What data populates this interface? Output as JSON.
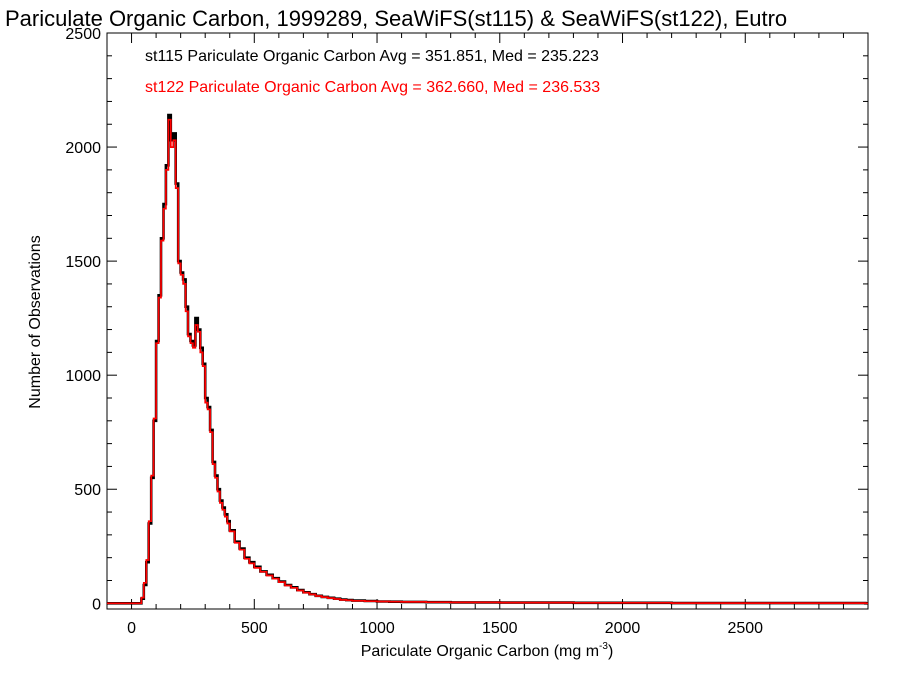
{
  "chart_data": {
    "type": "line",
    "step": true,
    "title": "Pariculate Organic Carbon, 1999289, SeaWiFS(st115) & SeaWiFS(st122), Eutro",
    "xlabel": "Pariculate Organic Carbon (mg m",
    "xlabel_sup": "-3",
    "xlabel_close": ")",
    "ylabel": "Number of Observations",
    "xlim": [
      -100,
      3000
    ],
    "ylim": [
      -25,
      2500
    ],
    "xticks": [
      0,
      500,
      1000,
      1500,
      2000,
      2500
    ],
    "yticks": [
      0,
      500,
      1000,
      1500,
      2000,
      2500
    ],
    "grid": false,
    "legend_position": "top-left",
    "bin_width": 10,
    "series": [
      {
        "name": "st115 Pariculate Organic Carbon Avg = 351.851, Med = 235.223",
        "color": "#000000",
        "x": [
          40,
          50,
          60,
          70,
          80,
          90,
          100,
          110,
          120,
          130,
          140,
          150,
          160,
          170,
          180,
          190,
          200,
          210,
          220,
          230,
          240,
          250,
          260,
          270,
          280,
          290,
          300,
          310,
          320,
          330,
          340,
          350,
          360,
          370,
          380,
          390,
          400,
          420,
          440,
          460,
          480,
          500,
          525,
          550,
          575,
          600,
          625,
          650,
          675,
          700,
          725,
          750,
          775,
          800,
          825,
          850,
          875,
          900,
          950,
          1000,
          1050,
          1100,
          1200,
          1300,
          1400,
          1500,
          1600,
          1800,
          2000,
          2200,
          2500,
          2800,
          2990
        ],
        "values": [
          20,
          80,
          180,
          350,
          550,
          800,
          1150,
          1350,
          1600,
          1750,
          1920,
          2140,
          2030,
          2060,
          1840,
          1500,
          1450,
          1420,
          1300,
          1180,
          1150,
          1130,
          1250,
          1200,
          1120,
          1050,
          900,
          860,
          760,
          620,
          560,
          500,
          450,
          420,
          390,
          360,
          320,
          270,
          240,
          200,
          180,
          160,
          140,
          125,
          110,
          95,
          80,
          70,
          58,
          48,
          40,
          33,
          28,
          24,
          20,
          16,
          14,
          12,
          10,
          8,
          7,
          6,
          5,
          4,
          4,
          3,
          3,
          2,
          2,
          1,
          1,
          1,
          0
        ]
      },
      {
        "name": "st122 Pariculate Organic Carbon Avg = 362.660, Med = 236.533",
        "color": "#ff0000",
        "x": [
          40,
          50,
          60,
          70,
          80,
          90,
          100,
          110,
          120,
          130,
          140,
          150,
          160,
          170,
          180,
          190,
          200,
          210,
          220,
          230,
          240,
          250,
          260,
          270,
          280,
          290,
          300,
          310,
          320,
          330,
          340,
          350,
          360,
          370,
          380,
          390,
          400,
          420,
          440,
          460,
          480,
          500,
          525,
          550,
          575,
          600,
          625,
          650,
          675,
          700,
          725,
          750,
          775,
          800,
          825,
          850,
          875,
          900,
          950,
          1000,
          1050,
          1100,
          1200,
          1300,
          1400,
          1500,
          1600,
          1800,
          2000,
          2200,
          2500,
          2800,
          2990
        ],
        "values": [
          25,
          90,
          190,
          360,
          560,
          810,
          1140,
          1340,
          1590,
          1730,
          1900,
          2120,
          2000,
          2030,
          1820,
          1490,
          1440,
          1400,
          1280,
          1170,
          1140,
          1120,
          1220,
          1190,
          1100,
          1040,
          880,
          850,
          750,
          610,
          550,
          490,
          440,
          410,
          380,
          350,
          315,
          265,
          235,
          195,
          175,
          155,
          138,
          122,
          108,
          93,
          78,
          68,
          56,
          47,
          39,
          32,
          27,
          23,
          19,
          15,
          13,
          11,
          9,
          8,
          7,
          6,
          5,
          4,
          4,
          3,
          3,
          2,
          2,
          1,
          1,
          1,
          0
        ]
      }
    ]
  }
}
